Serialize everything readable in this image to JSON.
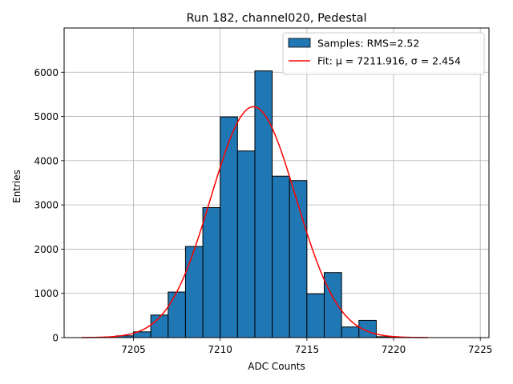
{
  "chart_data": {
    "type": "bar",
    "title": "Run 182, channel020, Pedestal",
    "xlabel": "ADC Counts",
    "ylabel": "Entries",
    "xlim": [
      7201,
      7225.5
    ],
    "ylim": [
      0,
      7000
    ],
    "xticks": [
      7205,
      7210,
      7215,
      7220,
      7225
    ],
    "yticks": [
      0,
      1000,
      2000,
      3000,
      4000,
      5000,
      6000
    ],
    "grid": true,
    "legend_position": "top-right",
    "series": [
      {
        "name": "Samples: RMS=2.52",
        "bin_width": 1,
        "bins": [
          {
            "x": 7204,
            "count": 40
          },
          {
            "x": 7205,
            "count": 130
          },
          {
            "x": 7206,
            "count": 510
          },
          {
            "x": 7207,
            "count": 1030
          },
          {
            "x": 7208,
            "count": 2060
          },
          {
            "x": 7209,
            "count": 2940
          },
          {
            "x": 7210,
            "count": 4990
          },
          {
            "x": 7211,
            "count": 4220
          },
          {
            "x": 7212,
            "count": 6030
          },
          {
            "x": 7213,
            "count": 3650
          },
          {
            "x": 7214,
            "count": 3550
          },
          {
            "x": 7215,
            "count": 990
          },
          {
            "x": 7216,
            "count": 1470
          },
          {
            "x": 7217,
            "count": 240
          },
          {
            "x": 7218,
            "count": 390
          },
          {
            "x": 7219,
            "count": 20
          }
        ],
        "color": "#1f77b4"
      },
      {
        "name": "Fit: μ = 7211.916, σ = 2.454",
        "type": "line",
        "mu": 7211.916,
        "sigma": 2.454,
        "amplitude": 5220,
        "x_range": [
          7202,
          7222
        ],
        "color": "#ff0000"
      }
    ]
  }
}
